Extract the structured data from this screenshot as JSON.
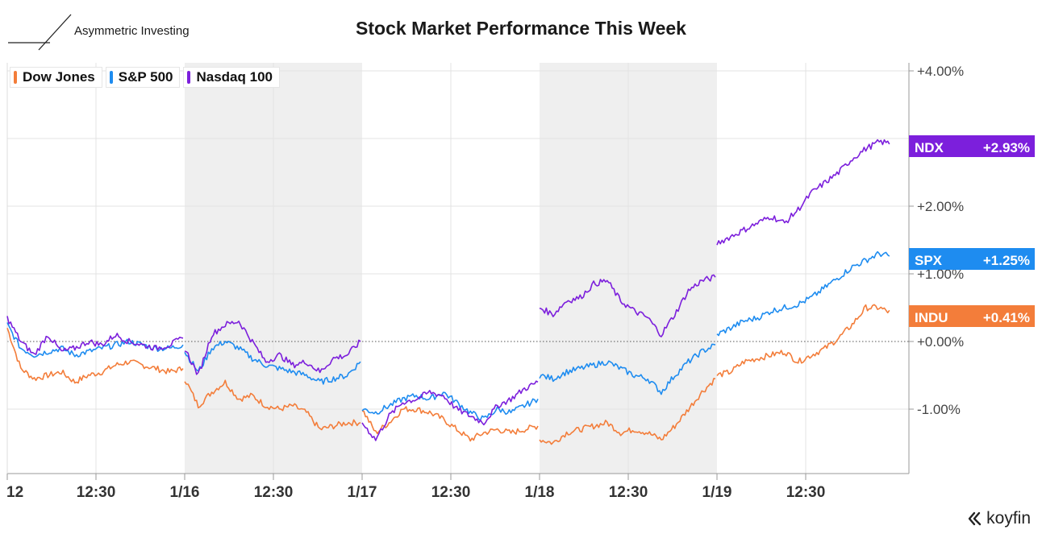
{
  "brand": {
    "name": "Asymmetric Investing",
    "icon": "asymmetric-logo-icon"
  },
  "chart_data": {
    "type": "line",
    "title": "Stock Market Performance This Week",
    "x_tick_labels": [
      "12",
      "12:30",
      "1/16",
      "12:30",
      "1/17",
      "12:30",
      "1/18",
      "12:30",
      "1/19",
      "12:30"
    ],
    "y_tick_labels": [
      "+4.00%",
      "+2.00%",
      "+1.00%",
      "+0.00%",
      "-1.00%"
    ],
    "ylim": [
      -1.9,
      4.1
    ],
    "y_unit": "%",
    "days": 5,
    "shaded_days": [
      1,
      3
    ],
    "zero_line": "dotted",
    "legend_position": "top-left",
    "series": [
      {
        "name": "Dow Jones",
        "ticker": "INDU",
        "color": "#f37d3a",
        "end_label": "+0.41%",
        "end_value": 0.41,
        "values": [
          [
            0.2,
            -0.4,
            -0.55,
            -0.5,
            -0.45,
            -0.6,
            -0.5,
            -0.45,
            -0.35,
            -0.3,
            -0.35,
            -0.4,
            -0.45,
            -0.4
          ],
          [
            -0.55,
            -0.95,
            -0.75,
            -0.6,
            -0.85,
            -0.8,
            -0.95,
            -1.0,
            -0.95,
            -1.05,
            -1.3,
            -1.25,
            -1.2,
            -1.2
          ],
          [
            -1.0,
            -1.35,
            -1.2,
            -1.0,
            -1.0,
            -1.05,
            -1.15,
            -1.3,
            -1.45,
            -1.35,
            -1.3,
            -1.35,
            -1.3,
            -1.25
          ],
          [
            -1.45,
            -1.5,
            -1.35,
            -1.3,
            -1.25,
            -1.2,
            -1.35,
            -1.3,
            -1.35,
            -1.45,
            -1.25,
            -1.0,
            -0.75,
            -0.55
          ],
          [
            -0.5,
            -0.45,
            -0.3,
            -0.25,
            -0.2,
            -0.15,
            -0.3,
            -0.2,
            -0.1,
            0.05,
            0.25,
            0.5,
            0.5,
            0.41
          ]
        ]
      },
      {
        "name": "S&P 500",
        "ticker": "SPX",
        "color": "#1e8cf0",
        "end_label": "+1.25%",
        "end_value": 1.25,
        "values": [
          [
            0.25,
            -0.1,
            -0.2,
            -0.15,
            -0.1,
            -0.2,
            -0.15,
            -0.1,
            -0.05,
            -0.0,
            -0.05,
            -0.1,
            -0.1,
            -0.05
          ],
          [
            -0.15,
            -0.45,
            -0.1,
            0.0,
            -0.1,
            -0.25,
            -0.35,
            -0.4,
            -0.45,
            -0.5,
            -0.6,
            -0.55,
            -0.5,
            -0.3
          ],
          [
            -1.0,
            -1.05,
            -0.95,
            -0.85,
            -0.8,
            -0.85,
            -0.75,
            -0.9,
            -1.05,
            -1.15,
            -1.0,
            -1.05,
            -0.95,
            -0.85
          ],
          [
            -0.5,
            -0.55,
            -0.45,
            -0.4,
            -0.35,
            -0.3,
            -0.4,
            -0.5,
            -0.55,
            -0.75,
            -0.5,
            -0.3,
            -0.15,
            -0.05
          ],
          [
            0.1,
            0.2,
            0.3,
            0.35,
            0.45,
            0.5,
            0.55,
            0.65,
            0.8,
            0.95,
            1.1,
            1.2,
            1.3,
            1.25
          ]
        ]
      },
      {
        "name": "Nasdaq 100",
        "ticker": "NDX",
        "color": "#7c1fdc",
        "end_label": "+2.93%",
        "end_value": 2.93,
        "values": [
          [
            0.35,
            0.0,
            -0.2,
            0.1,
            -0.15,
            -0.1,
            0.0,
            -0.05,
            0.1,
            0.0,
            -0.05,
            -0.1,
            -0.05,
            0.05
          ],
          [
            -0.1,
            -0.5,
            0.1,
            0.25,
            0.3,
            0.0,
            -0.3,
            -0.2,
            -0.35,
            -0.3,
            -0.45,
            -0.25,
            -0.2,
            0.0
          ],
          [
            -1.2,
            -1.45,
            -1.1,
            -0.9,
            -0.85,
            -0.75,
            -0.8,
            -1.0,
            -1.1,
            -1.2,
            -0.95,
            -0.85,
            -0.7,
            -0.6
          ],
          [
            0.5,
            0.4,
            0.6,
            0.65,
            0.85,
            0.9,
            0.6,
            0.45,
            0.35,
            0.1,
            0.4,
            0.75,
            0.9,
            0.95
          ],
          [
            1.45,
            1.55,
            1.65,
            1.75,
            1.85,
            1.75,
            1.95,
            2.2,
            2.35,
            2.5,
            2.7,
            2.85,
            2.95,
            2.93
          ]
        ]
      }
    ]
  },
  "koyfin": {
    "label": "koyfin"
  }
}
